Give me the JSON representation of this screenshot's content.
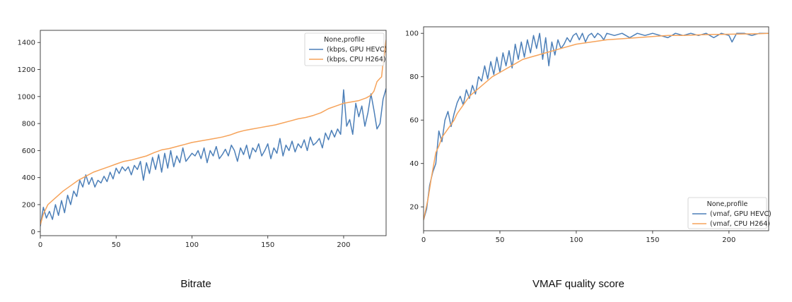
{
  "captions": {
    "left": "Bitrate",
    "right": "VMAF quality score"
  },
  "colors": {
    "gpu": "#4c7fb8",
    "cpu": "#f6a35a",
    "axis": "#333333"
  },
  "chart_data": [
    {
      "type": "line",
      "title": "",
      "caption": "Bitrate",
      "xlim": [
        0,
        228
      ],
      "ylim": [
        -30,
        1490
      ],
      "xticks": [
        0,
        50,
        100,
        150,
        200
      ],
      "yticks": [
        0,
        200,
        400,
        600,
        800,
        1000,
        1200,
        1400
      ],
      "legend": {
        "title": "None,profile",
        "placement": "top-right"
      },
      "series": [
        {
          "name": "(kbps, GPU HEVC)",
          "color": "#4c7fb8",
          "x": [
            0,
            2,
            4,
            6,
            8,
            10,
            12,
            14,
            16,
            18,
            20,
            22,
            24,
            26,
            28,
            30,
            32,
            34,
            36,
            38,
            40,
            42,
            44,
            46,
            48,
            50,
            52,
            54,
            56,
            58,
            60,
            62,
            64,
            66,
            68,
            70,
            72,
            74,
            76,
            78,
            80,
            82,
            84,
            86,
            88,
            90,
            92,
            94,
            96,
            98,
            100,
            102,
            104,
            106,
            108,
            110,
            112,
            114,
            116,
            118,
            120,
            122,
            124,
            126,
            128,
            130,
            132,
            134,
            136,
            138,
            140,
            142,
            144,
            146,
            148,
            150,
            152,
            154,
            156,
            158,
            160,
            162,
            164,
            166,
            168,
            170,
            172,
            174,
            176,
            178,
            180,
            182,
            184,
            186,
            188,
            190,
            192,
            194,
            196,
            198,
            200,
            202,
            204,
            206,
            208,
            210,
            212,
            214,
            216,
            218,
            220,
            222,
            224,
            226,
            228
          ],
          "y": [
            40,
            180,
            100,
            150,
            90,
            200,
            120,
            230,
            140,
            270,
            200,
            300,
            260,
            380,
            330,
            420,
            350,
            400,
            330,
            380,
            360,
            410,
            370,
            440,
            390,
            470,
            430,
            480,
            450,
            480,
            420,
            490,
            460,
            520,
            380,
            510,
            430,
            550,
            460,
            570,
            440,
            580,
            470,
            600,
            480,
            560,
            510,
            620,
            520,
            550,
            580,
            560,
            600,
            540,
            620,
            510,
            600,
            560,
            630,
            540,
            570,
            610,
            560,
            640,
            600,
            520,
            620,
            570,
            640,
            540,
            620,
            590,
            650,
            560,
            600,
            650,
            540,
            620,
            580,
            690,
            560,
            640,
            600,
            670,
            590,
            650,
            620,
            680,
            600,
            700,
            640,
            660,
            690,
            620,
            730,
            680,
            750,
            700,
            760,
            720,
            1050,
            780,
            830,
            720,
            950,
            850,
            930,
            780,
            880,
            1020,
            900,
            760,
            800,
            980,
            1060
          ],
          "x2": [],
          "y2": []
        },
        {
          "name": "(kbps, CPU H264)",
          "color": "#f6a35a",
          "x": [
            0,
            2,
            5,
            10,
            15,
            20,
            25,
            30,
            35,
            40,
            45,
            50,
            55,
            60,
            65,
            70,
            75,
            80,
            85,
            90,
            95,
            100,
            105,
            110,
            115,
            120,
            125,
            130,
            135,
            140,
            145,
            150,
            155,
            160,
            165,
            170,
            175,
            180,
            185,
            190,
            195,
            200,
            205,
            210,
            215,
            218,
            220,
            222,
            224,
            225,
            226,
            227,
            228
          ],
          "y": [
            50,
            130,
            200,
            250,
            300,
            340,
            380,
            410,
            440,
            460,
            480,
            500,
            520,
            530,
            545,
            560,
            585,
            605,
            615,
            630,
            645,
            660,
            670,
            680,
            690,
            700,
            715,
            735,
            750,
            760,
            770,
            780,
            790,
            805,
            820,
            835,
            845,
            860,
            880,
            910,
            930,
            950,
            960,
            970,
            990,
            1010,
            1040,
            1110,
            1135,
            1145,
            1250,
            1320,
            1420
          ]
        }
      ]
    },
    {
      "type": "line",
      "title": "",
      "caption": "VMAF quality score",
      "xlim": [
        0,
        226
      ],
      "ylim": [
        9,
        103
      ],
      "xticks": [
        0,
        50,
        100,
        150,
        200
      ],
      "yticks": [
        20,
        40,
        60,
        80,
        100
      ],
      "legend": {
        "title": "None,profile",
        "placement": "bottom-right"
      },
      "series": [
        {
          "name": "(vmaf, GPU HEVC)",
          "color": "#4c7fb8",
          "x": [
            0,
            2,
            4,
            6,
            8,
            10,
            12,
            14,
            16,
            18,
            20,
            22,
            24,
            26,
            28,
            30,
            32,
            34,
            36,
            38,
            40,
            42,
            44,
            46,
            48,
            50,
            52,
            54,
            56,
            58,
            60,
            62,
            64,
            66,
            68,
            70,
            72,
            74,
            76,
            78,
            80,
            82,
            84,
            86,
            88,
            90,
            92,
            94,
            96,
            98,
            100,
            102,
            104,
            106,
            108,
            110,
            112,
            114,
            116,
            118,
            120,
            125,
            130,
            135,
            140,
            145,
            150,
            155,
            160,
            165,
            170,
            175,
            180,
            185,
            190,
            195,
            200,
            202,
            205,
            210,
            215,
            220,
            226
          ],
          "y": [
            14,
            19,
            30,
            36,
            40,
            55,
            50,
            60,
            64,
            57,
            63,
            68,
            71,
            67,
            74,
            70,
            76,
            72,
            80,
            78,
            85,
            79,
            87,
            81,
            89,
            82,
            91,
            85,
            92,
            84,
            95,
            88,
            96,
            89,
            97,
            91,
            99,
            93,
            100,
            88,
            98,
            85,
            96,
            90,
            97,
            93,
            95,
            98,
            96,
            99,
            100,
            97,
            100,
            96,
            99,
            100,
            98,
            100,
            99,
            97,
            100,
            99,
            100,
            98,
            100,
            99,
            100,
            99,
            98,
            100,
            99,
            100,
            99,
            100,
            98,
            100,
            99,
            96,
            100,
            100,
            99,
            100,
            100
          ]
        },
        {
          "name": "(vmaf, CPU H264)",
          "color": "#f6a35a",
          "x": [
            0,
            3,
            5,
            8,
            10,
            12,
            15,
            18,
            20,
            22,
            25,
            28,
            30,
            35,
            40,
            45,
            50,
            55,
            60,
            65,
            70,
            75,
            80,
            85,
            90,
            100,
            110,
            120,
            130,
            140,
            150,
            160,
            170,
            180,
            190,
            200,
            210,
            220,
            226
          ],
          "y": [
            14,
            24,
            33,
            45,
            48,
            52,
            55,
            58,
            60,
            63,
            66,
            69,
            71,
            74,
            77,
            80,
            82,
            84,
            86,
            88,
            89,
            90,
            91,
            92,
            93,
            95,
            96,
            97,
            97.5,
            98,
            98.5,
            99,
            99,
            99.3,
            99.5,
            99.6,
            99.7,
            99.8,
            100
          ]
        }
      ]
    }
  ]
}
